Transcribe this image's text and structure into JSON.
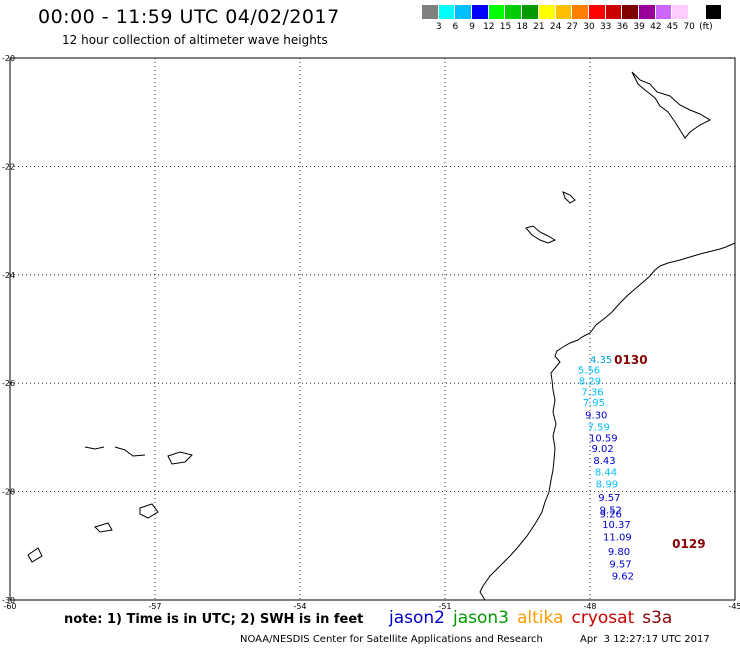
{
  "header": {
    "title": "00:00 - 11:59 UTC 04/02/2017",
    "subtitle": "12 hour collection of altimeter wave heights"
  },
  "color_legend": {
    "colors": [
      "#808080",
      "#00ffff",
      "#00bfff",
      "#0000ff",
      "#00ff00",
      "#00cc00",
      "#009900",
      "#ffff00",
      "#ffbf00",
      "#ff8000",
      "#ff0000",
      "#cc0000",
      "#800000",
      "#990099",
      "#cc66ff",
      "#ffccff",
      "#ffffff",
      "#000000"
    ],
    "labels": [
      "3",
      "6",
      "9",
      "12",
      "15",
      "18",
      "21",
      "24",
      "27",
      "30",
      "33",
      "36",
      "39",
      "42",
      "45",
      "70",
      "(ft)"
    ]
  },
  "footer": {
    "note": "note: 1) Time is in UTC; 2) SWH is in feet",
    "satellites": [
      {
        "name": "jason2",
        "color": "#0000cc"
      },
      {
        "name": "jason3",
        "color": "#009900"
      },
      {
        "name": "altika",
        "color": "#ff9900"
      },
      {
        "name": "cryosat",
        "color": "#cc0000"
      },
      {
        "name": "s3a",
        "color": "#880000"
      }
    ],
    "credit": "NOAA/NESDIS Center for Satellite Applications and Research",
    "timestamp": "Apr  3 12:27:17 UTC 2017"
  },
  "chart_data": {
    "type": "scatter",
    "xlim": [
      -60,
      -45
    ],
    "ylim": [
      -30,
      -20
    ],
    "xticks": [
      "-60",
      "-57",
      "-54",
      "-51",
      "-48",
      "-45"
    ],
    "yticks": [
      "-20",
      "-22",
      "-24",
      "-26",
      "-28",
      "-30"
    ],
    "grid": true,
    "track_labels": [
      {
        "text": "0130",
        "lon": -47.5,
        "lat": -25.55,
        "color": "#880000"
      },
      {
        "text": "0129",
        "lon": -46.3,
        "lat": -28.95,
        "color": "#880000"
      }
    ],
    "points": [
      {
        "text": "4.35",
        "lon": -48.0,
        "lat": -25.55,
        "color": "#00a0dd"
      },
      {
        "text": "5.56",
        "lon": -48.25,
        "lat": -25.75,
        "color": "#00bfff"
      },
      {
        "text": "8.29",
        "lon": -48.23,
        "lat": -25.95,
        "color": "#00bfff"
      },
      {
        "text": "7.36",
        "lon": -48.18,
        "lat": -26.15,
        "color": "#00bfff"
      },
      {
        "text": "7.95",
        "lon": -48.15,
        "lat": -26.35,
        "color": "#00bfff"
      },
      {
        "text": "9.30",
        "lon": -48.1,
        "lat": -26.58,
        "color": "#0000cc"
      },
      {
        "text": "7.59",
        "lon": -48.05,
        "lat": -26.8,
        "color": "#00bfff"
      },
      {
        "text": "10.59",
        "lon": -48.02,
        "lat": -27.0,
        "color": "#0000cc"
      },
      {
        "text": "9.02",
        "lon": -47.97,
        "lat": -27.2,
        "color": "#0000cc"
      },
      {
        "text": "8.43",
        "lon": -47.93,
        "lat": -27.42,
        "color": "#0000cc"
      },
      {
        "text": "8.44",
        "lon": -47.9,
        "lat": -27.63,
        "color": "#00bfff"
      },
      {
        "text": "8.99",
        "lon": -47.88,
        "lat": -27.85,
        "color": "#00bfff"
      },
      {
        "text": "9.57",
        "lon": -47.83,
        "lat": -28.1,
        "color": "#0000cc"
      },
      {
        "text": "9.52",
        "lon": -47.8,
        "lat": -28.33,
        "color": "#0000cc"
      },
      {
        "text": "9.26",
        "lon": -47.8,
        "lat": -28.4,
        "color": "#0000cc"
      },
      {
        "text": "10.37",
        "lon": -47.75,
        "lat": -28.6,
        "color": "#0000cc"
      },
      {
        "text": "11.09",
        "lon": -47.73,
        "lat": -28.83,
        "color": "#0000cc"
      },
      {
        "text": "9.80",
        "lon": -47.63,
        "lat": -29.1,
        "color": "#0000cc"
      },
      {
        "text": "9.57",
        "lon": -47.6,
        "lat": -29.33,
        "color": "#0000cc"
      },
      {
        "text": "9.62",
        "lon": -47.55,
        "lat": -29.55,
        "color": "#0000cc"
      }
    ]
  }
}
